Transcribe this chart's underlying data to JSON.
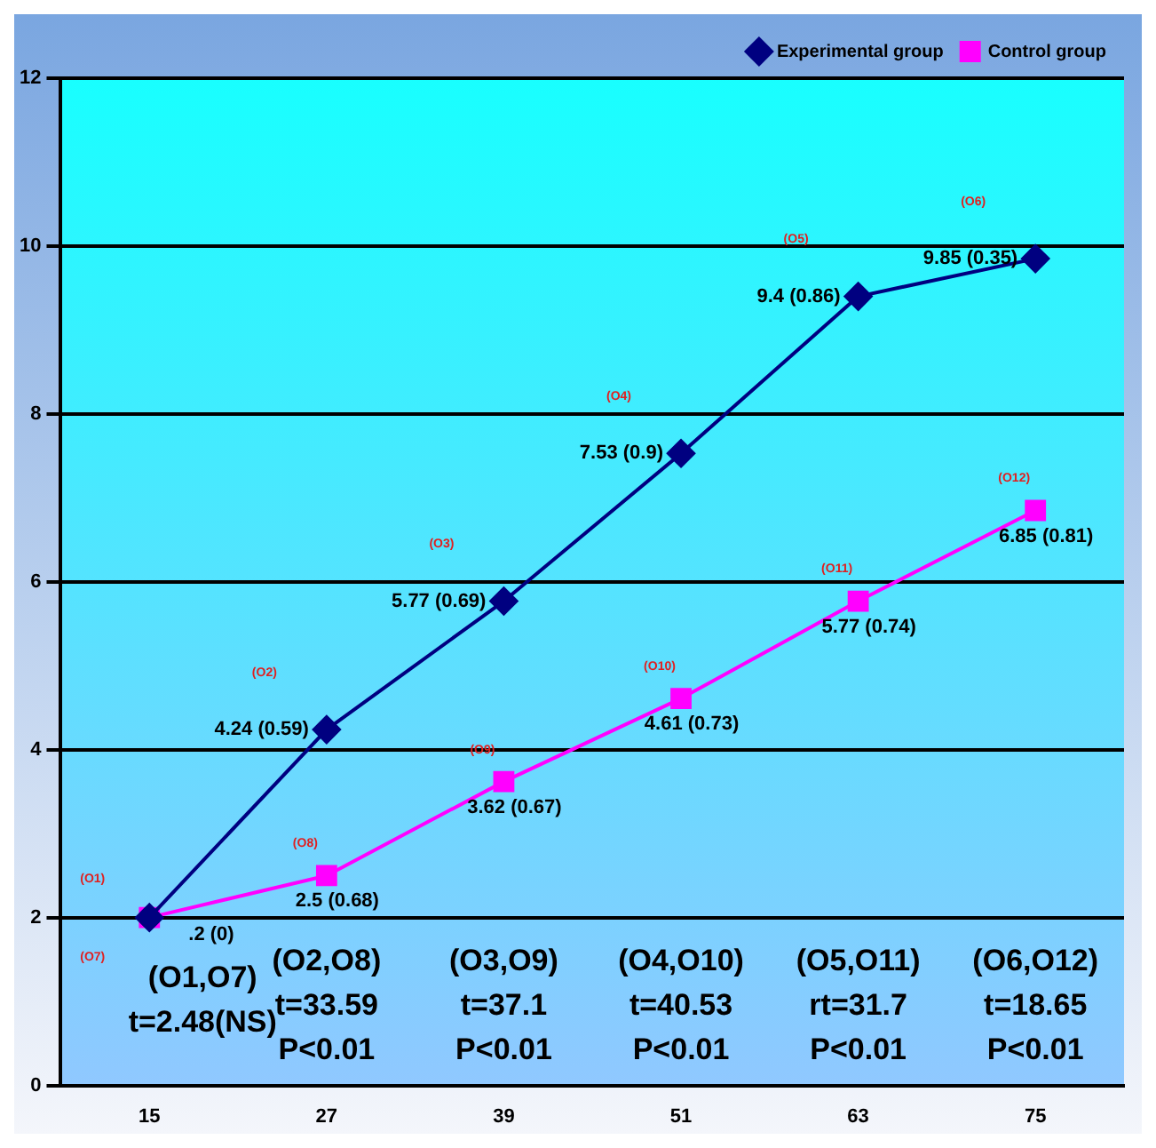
{
  "chart_data": {
    "type": "line",
    "categories": [
      "15",
      "27",
      "39",
      "51",
      "63",
      "75"
    ],
    "series": [
      {
        "name": "Experimental group",
        "color": "#000080",
        "marker": "diamond",
        "values": [
          2,
          4.24,
          5.77,
          7.53,
          9.4,
          9.85
        ],
        "value_labels": [
          null,
          "4.24 (0.59)",
          "5.77 (0.69)",
          "7.53 (0.9)",
          "9.4 (0.86)",
          "9.85 (0.35)"
        ]
      },
      {
        "name": "Control group",
        "color": "#ff00ff",
        "marker": "square",
        "values": [
          2,
          2.5,
          3.62,
          4.61,
          5.77,
          6.85
        ],
        "value_labels": [
          ".2 (0)",
          "2.5 (0.68)",
          "3.62 (0.67)",
          "4.61 (0.73)",
          "5.77 (0.74)",
          "6.85 (0.81)"
        ]
      }
    ],
    "ylim": [
      0,
      12
    ],
    "yticks": [
      0,
      2,
      4,
      6,
      8,
      10,
      12
    ],
    "grid": "y",
    "legend": "top right",
    "annotations": [
      "(O1)",
      "(O2)",
      "(O3)",
      "(O4)",
      "(O5)",
      "(O6)",
      "(O7)",
      "(O8)",
      "(O9)",
      "(O10)",
      "(O11)",
      "(O12)",
      "(O1,O7)\nt=2.48(NS)",
      "(O2,O8)\nt=33.59\nP<0.01",
      "(O3,O9)\nt=37.1\nP<0.01",
      "(O4,O10)\nt=40.53\nP<0.01",
      "(O5,O11)\nrt=31.7\nP<0.01",
      "(O6,O12)\nt=18.65\nP<0.01"
    ]
  }
}
